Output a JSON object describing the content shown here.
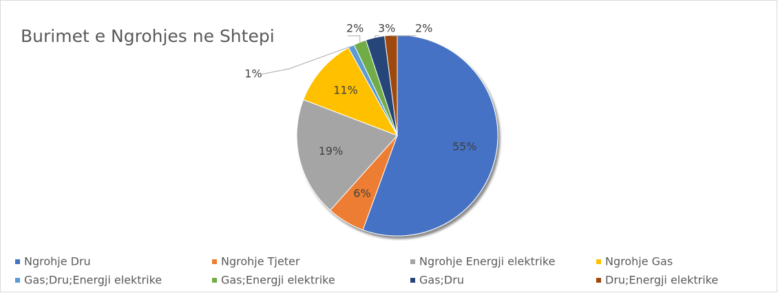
{
  "chart_data": {
    "type": "pie",
    "title": "Burimet e Ngrohjes ne Shtepi",
    "categories": [
      "Ngrohje Dru",
      "Ngrohje Tjeter",
      "Ngrohje Energji elektrike",
      "Ngrohje Gas",
      "Gas;Dru;Energji elektrike",
      "Gas;Energji elektrike",
      "Gas;Dru",
      "Dru;Energji elektrike"
    ],
    "values": [
      55,
      6,
      19,
      11,
      1,
      2,
      3,
      2
    ],
    "value_labels": [
      "55%",
      "6%",
      "19%",
      "11%",
      "1%",
      "2%",
      "3%",
      "2%"
    ],
    "colors": [
      "#4472c4",
      "#ed7d31",
      "#a5a5a5",
      "#ffc000",
      "#5b9bd5",
      "#70ad47",
      "#264478",
      "#9e480e"
    ],
    "legend": "bottom"
  }
}
